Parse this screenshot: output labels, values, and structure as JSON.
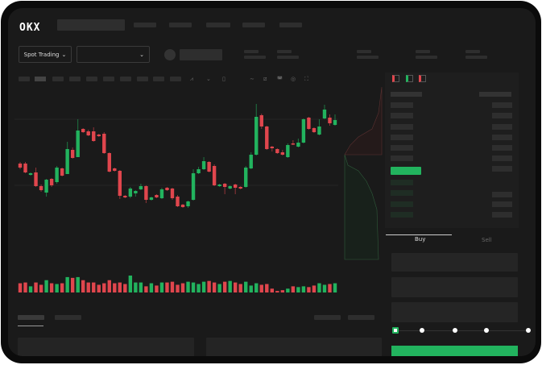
{
  "header": {
    "logo": "OKX"
  },
  "toolbar": {
    "spot_trading_label": "Spot Trading",
    "chevron": "⌄"
  },
  "trade_panel": {
    "tabs": [
      {
        "label": "Buy",
        "active": true
      },
      {
        "label": "Sell",
        "active": false
      }
    ],
    "slider_value": 0
  },
  "colors": {
    "up": "#22b35e",
    "down": "#e0464d",
    "background": "#1a1a1a",
    "accent": "#22b35e"
  },
  "chart_data": {
    "type": "candlestick",
    "ylim": [
      40,
      175
    ],
    "grid": true,
    "candles": [
      [
        97,
        99,
        90,
        92
      ],
      [
        97,
        99,
        85,
        86
      ],
      [
        83,
        86,
        82,
        85
      ],
      [
        86,
        92,
        68,
        69
      ],
      [
        69,
        71,
        62,
        64
      ],
      [
        61,
        78,
        56,
        77
      ],
      [
        78,
        79,
        68,
        70
      ],
      [
        74,
        94,
        72,
        92
      ],
      [
        91,
        92,
        81,
        82
      ],
      [
        84,
        124,
        84,
        115
      ],
      [
        114,
        117,
        103,
        104
      ],
      [
        105,
        152,
        105,
        138
      ],
      [
        140,
        141,
        135,
        136
      ],
      [
        137,
        139,
        131,
        132
      ],
      [
        137,
        142,
        124,
        125
      ],
      [
        133,
        134,
        130,
        131
      ],
      [
        134,
        136,
        109,
        110
      ],
      [
        110,
        111,
        86,
        87
      ],
      [
        91,
        92,
        87,
        88
      ],
      [
        88,
        89,
        53,
        57
      ],
      [
        57,
        58,
        54,
        55
      ],
      [
        56,
        68,
        54,
        66
      ],
      [
        60,
        64,
        56,
        63
      ],
      [
        65,
        72,
        64,
        69
      ],
      [
        69,
        70,
        48,
        52
      ],
      [
        52,
        56,
        51,
        55
      ],
      [
        58,
        59,
        54,
        55
      ],
      [
        54,
        67,
        53,
        65
      ],
      [
        67,
        68,
        63,
        64
      ],
      [
        66,
        67,
        52,
        54
      ],
      [
        56,
        58,
        43,
        44
      ],
      [
        46,
        47,
        42,
        43
      ],
      [
        44,
        51,
        42,
        50
      ],
      [
        52,
        90,
        51,
        85
      ],
      [
        85,
        93,
        84,
        90
      ],
      [
        90,
        105,
        89,
        100
      ],
      [
        99,
        100,
        86,
        87
      ],
      [
        94,
        96,
        69,
        70
      ],
      [
        69,
        72,
        68,
        71
      ],
      [
        72,
        73,
        59,
        68
      ],
      [
        66,
        70,
        65,
        69
      ],
      [
        71,
        72,
        59,
        67
      ],
      [
        68,
        69,
        65,
        66
      ],
      [
        68,
        94,
        67,
        92
      ],
      [
        91,
        111,
        90,
        108
      ],
      [
        108,
        171,
        107,
        155
      ],
      [
        157,
        159,
        140,
        143
      ],
      [
        143,
        144,
        114,
        115
      ],
      [
        118,
        119,
        112,
        116
      ],
      [
        115,
        116,
        109,
        110
      ],
      [
        111,
        114,
        107,
        108
      ],
      [
        105,
        122,
        104,
        120
      ],
      [
        122,
        126,
        120,
        121
      ],
      [
        118,
        128,
        117,
        123
      ],
      [
        123,
        153,
        122,
        152
      ],
      [
        154,
        155,
        139,
        140
      ],
      [
        141,
        142,
        135,
        136
      ],
      [
        133,
        152,
        132,
        143
      ],
      [
        153,
        170,
        152,
        164
      ],
      [
        154,
        158,
        144,
        147
      ],
      [
        145,
        158,
        144,
        151
      ]
    ],
    "volume": [
      12,
      13,
      8,
      13,
      10,
      16,
      12,
      11,
      12,
      20,
      19,
      20,
      16,
      13,
      13,
      10,
      12,
      16,
      12,
      13,
      11,
      22,
      13,
      13,
      8,
      12,
      9,
      13,
      13,
      14,
      10,
      12,
      14,
      13,
      11,
      14,
      15,
      13,
      11,
      14,
      15,
      13,
      11,
      14,
      9,
      12,
      10,
      11,
      5,
      2,
      3,
      5,
      8,
      7,
      8,
      7,
      9,
      12,
      10,
      11,
      12
    ]
  }
}
